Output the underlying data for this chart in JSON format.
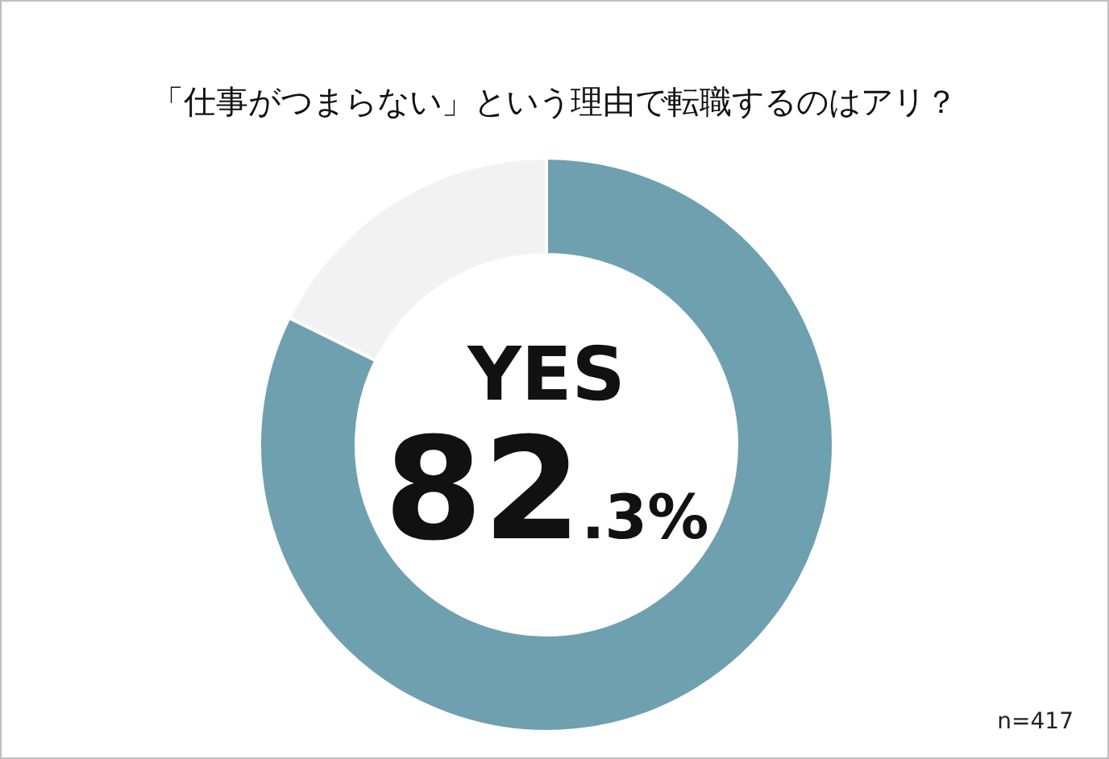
{
  "chart_data": {
    "type": "donut",
    "title": "「仕事がつまらない」という理由で転職するのはアリ？",
    "categories": [
      "YES",
      null
    ],
    "values": [
      82.3,
      17.7
    ],
    "colors": [
      "#6fa0b0",
      "#f2f2f2"
    ],
    "value_labels": [
      "82.3%",
      null
    ],
    "annotations": [
      "n=417"
    ]
  }
}
